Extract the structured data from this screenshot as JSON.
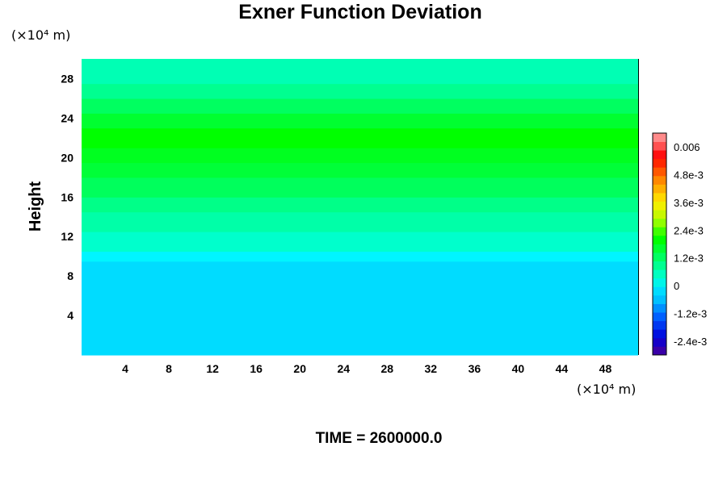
{
  "chart_data": {
    "type": "heatmap",
    "title": "Exner Function Deviation",
    "x_unit": "(×10⁴ m)",
    "y_unit": "(×10⁴ m)",
    "ylabel": "Height",
    "xlim": [
      0,
      51
    ],
    "ylim": [
      0,
      30
    ],
    "x_ticks": [
      4,
      8,
      12,
      16,
      20,
      24,
      28,
      32,
      36,
      40,
      44,
      48
    ],
    "y_ticks": [
      4,
      8,
      12,
      16,
      20,
      24,
      28
    ],
    "time_label": "TIME = 2600000.0",
    "colorbar": {
      "range": [
        -0.003,
        0.0066
      ],
      "tick_values": [
        0.006,
        0.0048,
        0.0036,
        0.0024,
        0.0012,
        0,
        -0.0012,
        -0.0024
      ],
      "tick_labels": [
        "0.006",
        "4.8e-3",
        "3.6e-3",
        "2.4e-3",
        "1.2e-3",
        "0",
        "-1.2e-3",
        "-2.4e-3"
      ],
      "colors": [
        "#3a00a8",
        "#1600c8",
        "#0010e0",
        "#0038f0",
        "#0060ff",
        "#0090ff",
        "#00c0ff",
        "#00dcff",
        "#00f5e8",
        "#00ffc0",
        "#00ff90",
        "#00ff60",
        "#00ff30",
        "#00ff00",
        "#40ff00",
        "#90ff00",
        "#c8f800",
        "#f0f000",
        "#ffd800",
        "#ffb000",
        "#ff8800",
        "#ff5800",
        "#ff2800",
        "#ff1010",
        "#ff5050",
        "#ff8a8a"
      ]
    },
    "rows": [
      {
        "y_range": [
          0,
          9.5
        ],
        "value": -0.0001,
        "color": "#00dcff"
      },
      {
        "y_range": [
          9.5,
          10.5
        ],
        "value": 0.0004,
        "color": "#00f5ff"
      },
      {
        "y_range": [
          10.5,
          12.5
        ],
        "value": 0.0008,
        "color": "#00ffcc"
      },
      {
        "y_range": [
          12.5,
          14.5
        ],
        "value": 0.0012,
        "color": "#00ffa8"
      },
      {
        "y_range": [
          14.5,
          16.0
        ],
        "value": 0.0014,
        "color": "#00ff88"
      },
      {
        "y_range": [
          16.0,
          18.0
        ],
        "value": 0.0016,
        "color": "#00ff5c"
      },
      {
        "y_range": [
          18.0,
          19.5
        ],
        "value": 0.0018,
        "color": "#00ff38"
      },
      {
        "y_range": [
          19.5,
          21.0
        ],
        "value": 0.002,
        "color": "#00ff20"
      },
      {
        "y_range": [
          21.0,
          23.0
        ],
        "value": 0.0021,
        "color": "#00ff00"
      },
      {
        "y_range": [
          23.0,
          24.5
        ],
        "value": 0.0019,
        "color": "#00ff30"
      },
      {
        "y_range": [
          24.5,
          26.0
        ],
        "value": 0.0016,
        "color": "#00ff60"
      },
      {
        "y_range": [
          26.0,
          27.5
        ],
        "value": 0.0013,
        "color": "#00ff90"
      },
      {
        "y_range": [
          27.5,
          30.0
        ],
        "value": 0.001,
        "color": "#00ffb4"
      }
    ]
  }
}
